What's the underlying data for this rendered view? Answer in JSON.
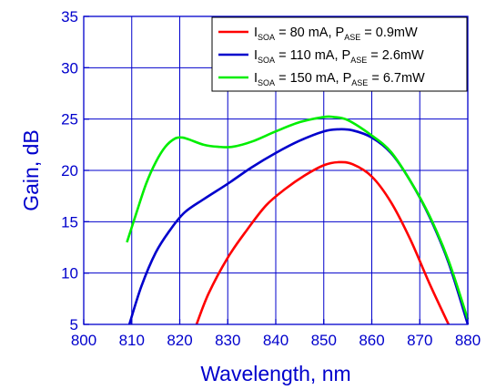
{
  "chart_data": {
    "type": "line",
    "title": "",
    "xlabel": "Wavelength, nm",
    "ylabel": "Gain, dB",
    "xlim": [
      800,
      880
    ],
    "ylim": [
      5,
      35
    ],
    "xticks": [
      800,
      810,
      820,
      830,
      840,
      850,
      860,
      870,
      880
    ],
    "yticks": [
      5,
      10,
      15,
      20,
      25,
      30,
      35
    ],
    "grid": true,
    "legend_position": "top-right",
    "series": [
      {
        "name": "I_SOA = 80 mA, P_ASE = 0.9mW",
        "legend": {
          "i_main": "I",
          "i_sub": "SOA",
          "i_rest": " = 80 mA, P",
          "p_sub": "ASE",
          "p_rest": " = 0.9mW"
        },
        "color": "#ff0000",
        "x": [
          823.5,
          826,
          830,
          834,
          838,
          842,
          846,
          850,
          853,
          856,
          860,
          864,
          868,
          872,
          876
        ],
        "y": [
          5.0,
          8.0,
          11.5,
          14.2,
          16.6,
          18.2,
          19.5,
          20.5,
          20.8,
          20.6,
          19.4,
          16.9,
          13.3,
          9.0,
          5.0
        ]
      },
      {
        "name": "I_SOA = 110 mA, P_ASE = 2.6mW",
        "legend": {
          "i_main": "I",
          "i_sub": "SOA",
          "i_rest": " = 110 mA, P",
          "p_sub": "ASE",
          "p_rest": " = 2.6mW"
        },
        "color": "#0000cc",
        "x": [
          809.5,
          812,
          815,
          818,
          821,
          825,
          830,
          835,
          840,
          845,
          850,
          853,
          856,
          860,
          864,
          868,
          872,
          876,
          880
        ],
        "y": [
          5.0,
          8.7,
          12.0,
          14.2,
          15.9,
          17.2,
          18.7,
          20.3,
          21.7,
          22.9,
          23.8,
          24.0,
          23.9,
          23.2,
          21.7,
          19.0,
          15.5,
          11.0,
          5.0
        ]
      },
      {
        "name": "I_SOA = 150 mA, P_ASE = 6.7mW",
        "legend": {
          "i_main": "I",
          "i_sub": "SOA",
          "i_rest": " = 150 mA, P",
          "p_sub": "ASE",
          "p_rest": " = 6.7mW"
        },
        "color": "#00ee00",
        "x": [
          809,
          811,
          813,
          815,
          817,
          819,
          820.5,
          822,
          825,
          828,
          831,
          835,
          840,
          845,
          850,
          852,
          855,
          860,
          864,
          868,
          872,
          876,
          880
        ],
        "y": [
          13.0,
          15.9,
          18.7,
          20.8,
          22.3,
          23.1,
          23.2,
          23.0,
          22.5,
          22.3,
          22.3,
          22.8,
          23.8,
          24.7,
          25.2,
          25.2,
          24.9,
          23.4,
          21.8,
          19.0,
          15.6,
          11.2,
          5.5
        ]
      }
    ]
  }
}
